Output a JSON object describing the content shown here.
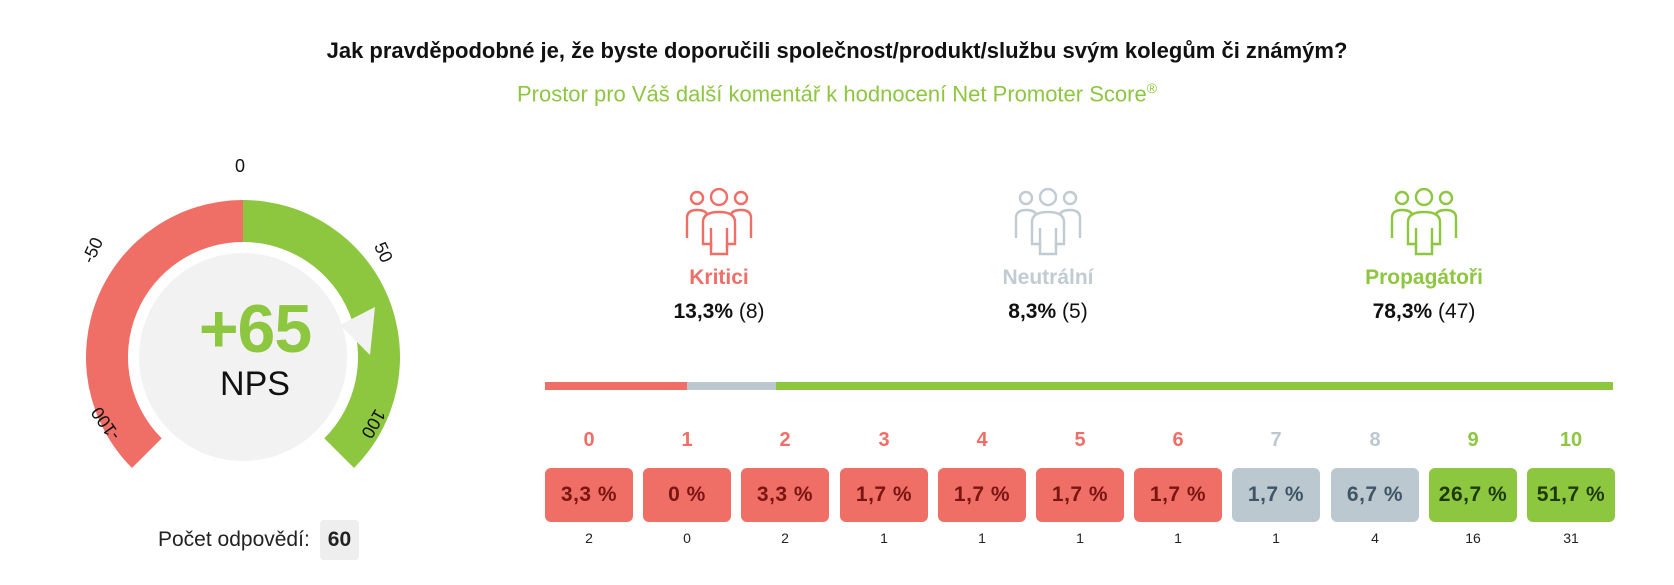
{
  "question": "Jak pravděpodobné je, že byste doporučili společnost/produkt/službu svým kolegům či známým?",
  "subtitle": "Prostor pro Váš další komentář k hodnocení Net Promoter Score",
  "subtitle_mark": "®",
  "gauge": {
    "value_text": "+65",
    "value": 65,
    "label": "NPS",
    "ticks": [
      "-100",
      "-50",
      "0",
      "50",
      "100"
    ]
  },
  "response_count": {
    "label": "Počet odpovědí:",
    "value": "60"
  },
  "groups": [
    {
      "name": "Kritici",
      "percent": "13,3%",
      "count": "(8)",
      "color": "#ef6f67",
      "icon": "people-group-icon"
    },
    {
      "name": "Neutrální",
      "percent": "8,3%",
      "count": "(5)",
      "color": "#c0cbd3",
      "icon": "people-group-icon"
    },
    {
      "name": "Propagátoři",
      "percent": "78,3%",
      "count": "(47)",
      "color": "#8dc63f",
      "icon": "people-group-icon"
    }
  ],
  "colors": {
    "critic": "#ef6f67",
    "neutral": "#bcc8d0",
    "promoter": "#8dc63f"
  },
  "chart_data": {
    "type": "bar",
    "categories": [
      "0",
      "1",
      "2",
      "3",
      "4",
      "5",
      "6",
      "7",
      "8",
      "9",
      "10"
    ],
    "percent_labels": [
      "3,3 %",
      "0 %",
      "3,3 %",
      "1,7 %",
      "1,7 %",
      "1,7 %",
      "1,7 %",
      "1,7 %",
      "6,7 %",
      "26,7 %",
      "51,7 %"
    ],
    "values": [
      3.3,
      0,
      3.3,
      1.7,
      1.7,
      1.7,
      1.7,
      1.7,
      6.7,
      26.7,
      51.7
    ],
    "counts": [
      "2",
      "0",
      "2",
      "1",
      "1",
      "1",
      "1",
      "1",
      "4",
      "16",
      "31"
    ],
    "distribution": [
      13.3,
      8.3,
      78.3
    ]
  }
}
